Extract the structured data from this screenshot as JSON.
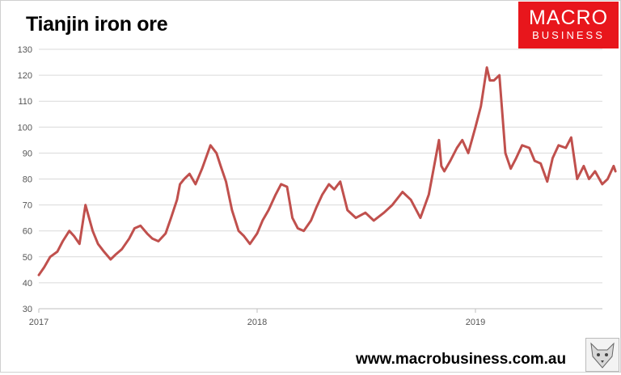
{
  "header": {
    "title": "Tianjin iron ore"
  },
  "logo": {
    "line1": "MACRO",
    "line2": "BUSINESS"
  },
  "footer": {
    "url": "www.macrobusiness.com.au"
  },
  "emblem": {
    "icon": "wolf-head-icon"
  },
  "colors": {
    "series": "#c0504d",
    "logo_bg": "#e8161c",
    "grid": "#d9d9d9"
  },
  "chart_data": {
    "type": "line",
    "title": "Tianjin iron ore",
    "xlabel": "",
    "ylabel": "",
    "ylim": [
      30,
      130
    ],
    "yticks": [
      30,
      40,
      50,
      60,
      70,
      80,
      90,
      100,
      110,
      120,
      130
    ],
    "xlim": [
      "2017-01-01",
      "2019-12-31"
    ],
    "xticks": [
      "2017",
      "2018",
      "2019"
    ],
    "grid": "horizontal",
    "legend": "none",
    "series": [
      {
        "x": [
          "2017-01-01",
          "2017-01-10",
          "2017-01-20",
          "2017-02-01",
          "2017-02-10",
          "2017-02-21",
          "2017-03-01",
          "2017-03-10",
          "2017-03-20",
          "2017-04-01",
          "2017-04-10",
          "2017-04-20",
          "2017-05-01",
          "2017-05-10",
          "2017-05-20",
          "2017-06-01",
          "2017-06-10",
          "2017-06-20",
          "2017-07-01",
          "2017-07-10",
          "2017-07-20",
          "2017-08-01",
          "2017-08-10",
          "2017-08-20",
          "2017-08-25",
          "2017-09-01",
          "2017-09-10",
          "2017-09-20",
          "2017-10-01",
          "2017-10-15",
          "2017-10-25",
          "2017-11-01",
          "2017-11-10",
          "2017-11-20",
          "2017-12-01",
          "2017-12-10",
          "2017-12-20",
          "2018-01-01",
          "2018-01-10",
          "2018-01-20",
          "2018-02-01",
          "2018-02-10",
          "2018-02-20",
          "2018-03-01",
          "2018-03-10",
          "2018-03-20",
          "2018-04-01",
          "2018-04-10",
          "2018-04-20",
          "2018-05-01",
          "2018-05-10",
          "2018-05-20",
          "2018-06-01",
          "2018-06-15",
          "2018-07-01",
          "2018-07-15",
          "2018-08-01",
          "2018-08-15",
          "2018-09-01",
          "2018-09-15",
          "2018-10-01",
          "2018-10-15",
          "2018-11-01",
          "2018-11-05",
          "2018-11-10",
          "2018-11-20",
          "2018-12-01",
          "2018-12-10",
          "2018-12-20",
          "2019-01-01",
          "2019-01-10",
          "2019-01-20",
          "2019-01-25",
          "2019-02-01",
          "2019-02-10",
          "2019-02-20",
          "2019-03-01",
          "2019-03-10",
          "2019-03-20",
          "2019-04-01",
          "2019-04-10",
          "2019-04-20",
          "2019-05-01",
          "2019-05-10",
          "2019-05-20",
          "2019-06-01",
          "2019-06-10",
          "2019-06-20",
          "2019-07-01",
          "2019-07-10",
          "2019-07-20",
          "2019-08-01",
          "2019-08-10",
          "2019-08-20",
          "2019-08-23"
        ],
        "y": [
          43,
          46,
          50,
          52,
          56,
          60,
          58,
          55,
          70,
          60,
          55,
          52,
          49,
          51,
          53,
          57,
          61,
          62,
          59,
          57,
          56,
          59,
          65,
          72,
          78,
          80,
          82,
          78,
          84,
          93,
          90,
          85,
          79,
          68,
          60,
          58,
          55,
          59,
          64,
          68,
          74,
          78,
          77,
          65,
          61,
          60,
          64,
          69,
          74,
          78,
          76,
          79,
          68,
          65,
          67,
          64,
          67,
          70,
          75,
          72,
          65,
          74,
          95,
          85,
          83,
          87,
          92,
          95,
          90,
          100,
          108,
          123,
          118,
          118,
          120,
          90,
          84,
          88,
          93,
          92,
          87,
          86,
          79,
          88,
          93,
          92,
          96,
          80,
          85,
          80,
          83,
          78,
          80,
          85,
          83
        ]
      }
    ]
  }
}
